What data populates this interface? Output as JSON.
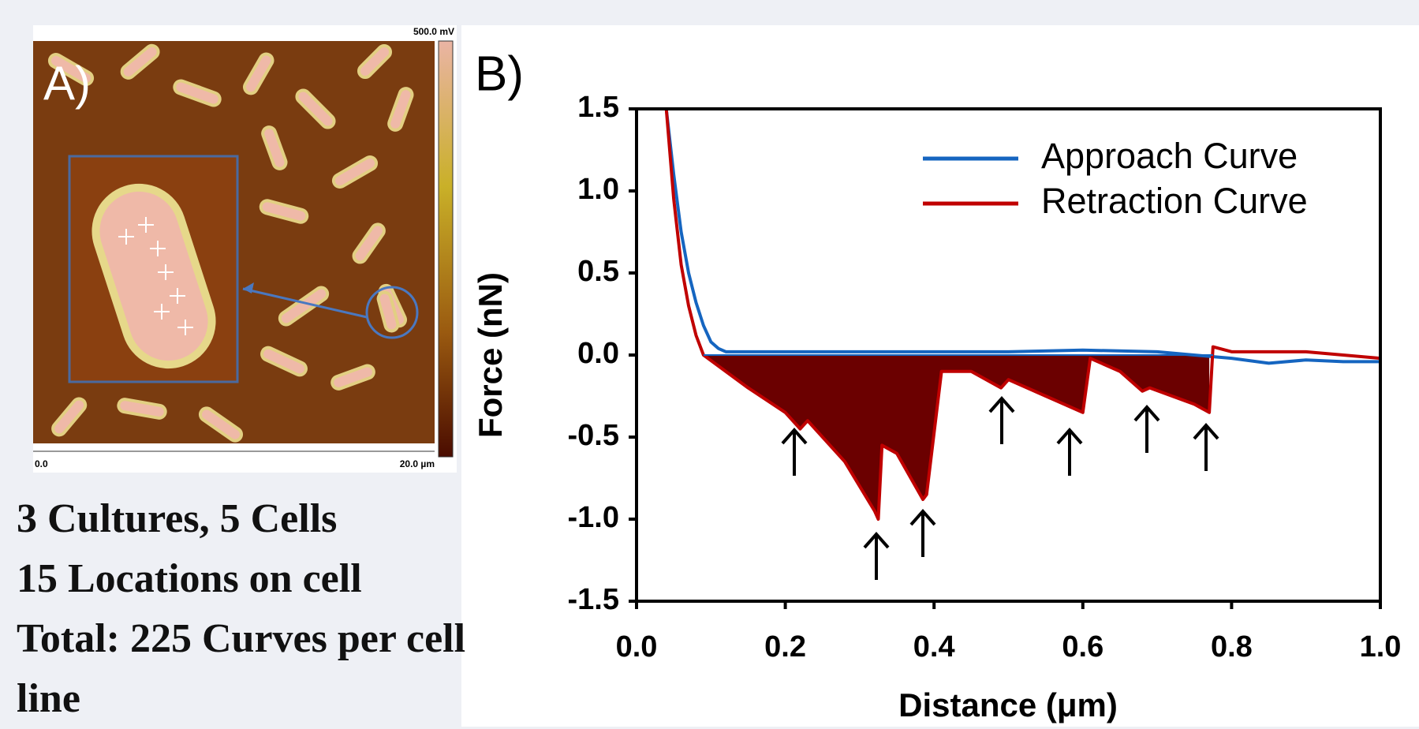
{
  "image_panel": {
    "label": "A)",
    "scale_max": "500.0 mV",
    "axis_start": "0.0",
    "axis_end": "20.0 µm"
  },
  "notes": [
    "3 Cultures, 5 Cells",
    "15 Locations on cell",
    "Total: 225 Curves per cell line"
  ],
  "chart_data": {
    "type": "line",
    "panel_label": "B)",
    "x_label": "Distance (μm)",
    "y_label": "Force (nN)",
    "xlim": [
      0,
      1
    ],
    "ylim": [
      -1.5,
      1.5
    ],
    "xticks": [
      {
        "value": 0,
        "label": "0.0"
      },
      {
        "value": 0.2,
        "label": "0.2"
      },
      {
        "value": 0.4,
        "label": "0.4"
      },
      {
        "value": 0.6,
        "label": "0.6"
      },
      {
        "value": 0.8,
        "label": "0.8"
      },
      {
        "value": 1,
        "label": "1.0"
      }
    ],
    "yticks": [
      {
        "value": -1.5,
        "label": "-1.5"
      },
      {
        "value": -1,
        "label": "-1.0"
      },
      {
        "value": -0.5,
        "label": "-0.5"
      },
      {
        "value": 0,
        "label": "0.0"
      },
      {
        "value": 0.5,
        "label": "0.5"
      },
      {
        "value": 1,
        "label": "1.0"
      },
      {
        "value": 1.5,
        "label": "1.5"
      }
    ],
    "legend": "top-right",
    "series": [
      {
        "name": "Approach Curve",
        "color": "#1565c0",
        "x": [
          0.04,
          0.05,
          0.06,
          0.07,
          0.08,
          0.09,
          0.1,
          0.11,
          0.12,
          0.15,
          0.2,
          0.3,
          0.4,
          0.5,
          0.6,
          0.7,
          0.8,
          0.85,
          0.9,
          0.95,
          1.0
        ],
        "values": [
          1.5,
          1.1,
          0.75,
          0.5,
          0.32,
          0.18,
          0.08,
          0.04,
          0.02,
          0.02,
          0.02,
          0.02,
          0.02,
          0.02,
          0.03,
          0.02,
          -0.02,
          -0.05,
          -0.03,
          -0.04,
          -0.04
        ]
      },
      {
        "name": "Retraction Curve",
        "color": "#c00000",
        "fill": "#6b0000",
        "x": [
          0.04,
          0.05,
          0.06,
          0.07,
          0.08,
          0.09,
          0.15,
          0.2,
          0.22,
          0.23,
          0.28,
          0.32,
          0.325,
          0.33,
          0.35,
          0.385,
          0.39,
          0.41,
          0.45,
          0.49,
          0.5,
          0.55,
          0.6,
          0.61,
          0.65,
          0.68,
          0.69,
          0.75,
          0.77,
          0.775,
          0.8,
          0.9,
          1.0
        ],
        "values": [
          1.5,
          0.95,
          0.55,
          0.3,
          0.12,
          0,
          -0.2,
          -0.35,
          -0.45,
          -0.4,
          -0.65,
          -0.95,
          -1.0,
          -0.55,
          -0.6,
          -0.88,
          -0.85,
          -0.1,
          -0.1,
          -0.2,
          -0.15,
          -0.25,
          -0.35,
          -0.02,
          -0.1,
          -0.22,
          -0.2,
          -0.3,
          -0.35,
          0.05,
          0.02,
          0.02,
          -0.02
        ]
      }
    ]
  }
}
